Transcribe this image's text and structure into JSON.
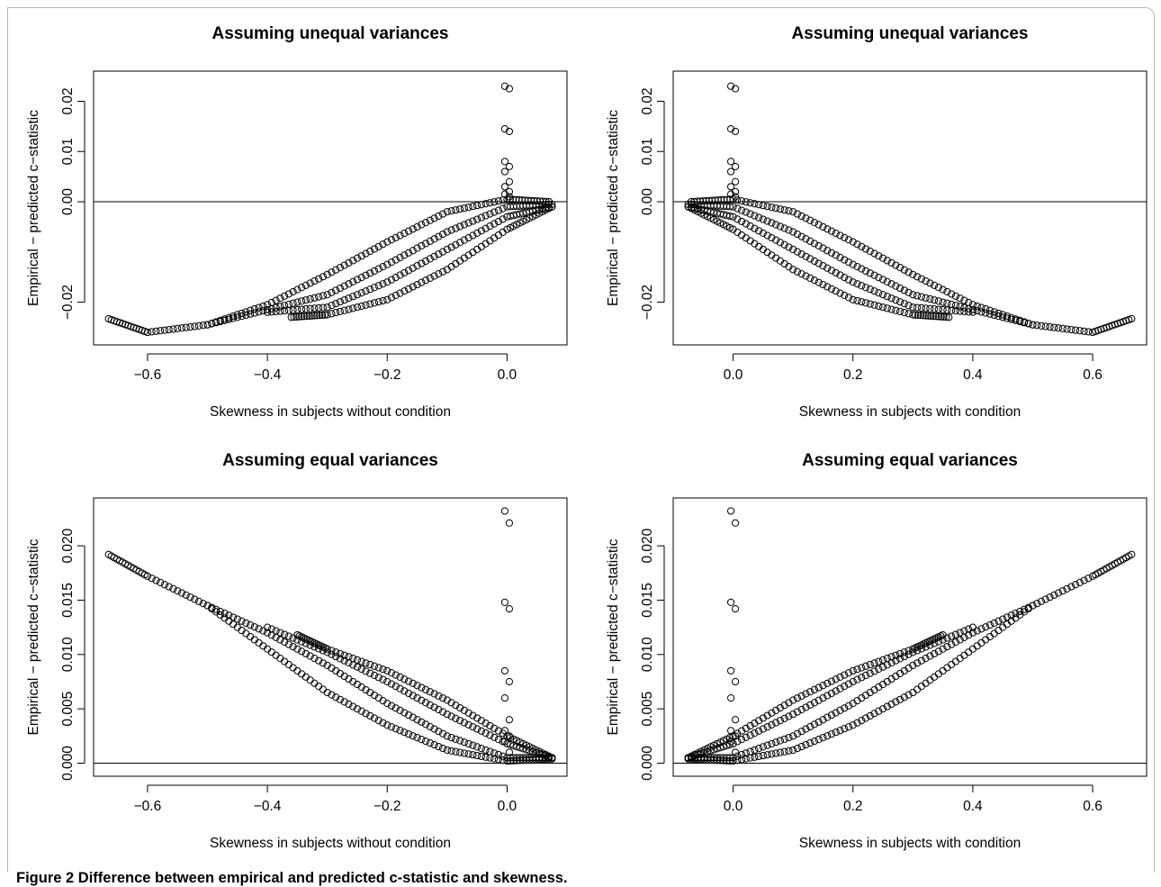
{
  "caption": {
    "figure_label": "Figure 2",
    "text": "Difference between empirical and predicted c-statistic and skewness."
  },
  "chart_data": [
    {
      "type": "scatter",
      "title": "Assuming unequal variances",
      "xlabel": "Skewness in subjects without condition",
      "ylabel": "Empirical − predicted c−statistic",
      "xlim": [
        -0.69,
        0.1
      ],
      "ylim": [
        -0.0285,
        0.026
      ],
      "xticks": [
        -0.6,
        -0.4,
        -0.2,
        0.0
      ],
      "xtick_labels": [
        "−0.6",
        "−0.4",
        "−0.2",
        "0.0"
      ],
      "yticks": [
        -0.02,
        0.0,
        0.01,
        0.02
      ],
      "ytick_labels": [
        "−0.02",
        "0.00",
        "0.01",
        "0.02"
      ],
      "hline": 0,
      "grid": false,
      "spike": {
        "x": 0.0,
        "values": [
          0.023,
          0.0225,
          0.0145,
          0.014,
          0.008,
          0.007,
          0.006,
          0.004,
          0.003,
          0.002,
          0.0015,
          0.001
        ]
      },
      "series": [
        {
          "points": [
            [
              -0.665,
              -0.0233
            ],
            [
              -0.6,
              -0.026
            ],
            [
              -0.5,
              -0.0245
            ],
            [
              -0.4,
              -0.0205
            ],
            [
              -0.3,
              -0.0145
            ],
            [
              -0.2,
              -0.008
            ],
            [
              -0.1,
              -0.002
            ],
            [
              0.0,
              0.0005
            ],
            [
              0.07,
              0.0
            ]
          ]
        },
        {
          "points": [
            [
              -0.5,
              -0.0245
            ],
            [
              -0.4,
              -0.0215
            ],
            [
              -0.3,
              -0.0185
            ],
            [
              -0.2,
              -0.0125
            ],
            [
              -0.1,
              -0.006
            ],
            [
              0.0,
              -0.001
            ],
            [
              0.075,
              -0.0005
            ]
          ]
        },
        {
          "points": [
            [
              -0.4,
              -0.022
            ],
            [
              -0.3,
              -0.021
            ],
            [
              -0.2,
              -0.016
            ],
            [
              -0.1,
              -0.0095
            ],
            [
              0.0,
              -0.003
            ],
            [
              0.075,
              -0.001
            ]
          ]
        },
        {
          "points": [
            [
              -0.36,
              -0.023
            ],
            [
              -0.3,
              -0.0225
            ],
            [
              -0.2,
              -0.0195
            ],
            [
              -0.1,
              -0.0135
            ],
            [
              0.0,
              -0.0055
            ],
            [
              0.075,
              -0.001
            ]
          ]
        }
      ]
    },
    {
      "type": "scatter",
      "title": "Assuming unequal variances",
      "xlabel": "Skewness in subjects with condition",
      "ylabel": "Empirical − predicted c−statistic",
      "xlim": [
        -0.1,
        0.69
      ],
      "ylim": [
        -0.0285,
        0.026
      ],
      "xticks": [
        0.0,
        0.2,
        0.4,
        0.6
      ],
      "xtick_labels": [
        "0.0",
        "0.2",
        "0.4",
        "0.6"
      ],
      "yticks": [
        -0.02,
        0.0,
        0.01,
        0.02
      ],
      "ytick_labels": [
        "−0.02",
        "0.00",
        "0.01",
        "0.02"
      ],
      "hline": 0,
      "grid": false,
      "spike": {
        "x": 0.0,
        "values": [
          0.023,
          0.0225,
          0.0145,
          0.014,
          0.008,
          0.007,
          0.006,
          0.004,
          0.003,
          0.002,
          0.0015,
          0.001
        ]
      },
      "series": [
        {
          "points": [
            [
              -0.07,
              0.0
            ],
            [
              0.0,
              0.0005
            ],
            [
              0.1,
              -0.002
            ],
            [
              0.2,
              -0.008
            ],
            [
              0.3,
              -0.0145
            ],
            [
              0.4,
              -0.0205
            ],
            [
              0.5,
              -0.0245
            ],
            [
              0.6,
              -0.026
            ],
            [
              0.665,
              -0.0233
            ]
          ]
        },
        {
          "points": [
            [
              -0.075,
              -0.0005
            ],
            [
              0.0,
              -0.001
            ],
            [
              0.1,
              -0.006
            ],
            [
              0.2,
              -0.0125
            ],
            [
              0.3,
              -0.0185
            ],
            [
              0.4,
              -0.0215
            ],
            [
              0.5,
              -0.0245
            ]
          ]
        },
        {
          "points": [
            [
              -0.075,
              -0.001
            ],
            [
              0.0,
              -0.003
            ],
            [
              0.1,
              -0.0095
            ],
            [
              0.2,
              -0.016
            ],
            [
              0.3,
              -0.021
            ],
            [
              0.4,
              -0.022
            ]
          ]
        },
        {
          "points": [
            [
              -0.075,
              -0.001
            ],
            [
              0.0,
              -0.0055
            ],
            [
              0.1,
              -0.0135
            ],
            [
              0.2,
              -0.0195
            ],
            [
              0.3,
              -0.0225
            ],
            [
              0.36,
              -0.023
            ]
          ]
        }
      ]
    },
    {
      "type": "scatter",
      "title": "Assuming equal variances",
      "xlabel": "Skewness in subjects without condition",
      "ylabel": "Empirical − predicted c−statistic",
      "xlim": [
        -0.69,
        0.1
      ],
      "ylim": [
        -0.0012,
        0.0244
      ],
      "xticks": [
        -0.6,
        -0.4,
        -0.2,
        0.0
      ],
      "xtick_labels": [
        "−0.6",
        "−0.4",
        "−0.2",
        "0.0"
      ],
      "yticks": [
        0.0,
        0.005,
        0.01,
        0.015,
        0.02
      ],
      "ytick_labels": [
        "0.000",
        "0.005",
        "0.010",
        "0.015",
        "0.020"
      ],
      "hline": 0,
      "grid": false,
      "spike": {
        "x": 0.0,
        "values": [
          0.0232,
          0.0221,
          0.0148,
          0.0142,
          0.0085,
          0.0075,
          0.006,
          0.004,
          0.003,
          0.0025,
          0.002,
          0.001
        ]
      },
      "series": [
        {
          "points": [
            [
              -0.665,
              0.0192
            ],
            [
              -0.6,
              0.0172
            ],
            [
              -0.5,
              0.0145
            ],
            [
              -0.4,
              0.0105
            ],
            [
              -0.3,
              0.0065
            ],
            [
              -0.2,
              0.0035
            ],
            [
              -0.1,
              0.0012
            ],
            [
              0.0,
              0.0002
            ],
            [
              0.075,
              0.0004
            ]
          ]
        },
        {
          "points": [
            [
              -0.5,
              0.0145
            ],
            [
              -0.4,
              0.012
            ],
            [
              -0.3,
              0.009
            ],
            [
              -0.2,
              0.0055
            ],
            [
              -0.1,
              0.0025
            ],
            [
              0.0,
              0.0005
            ],
            [
              0.075,
              0.0005
            ]
          ]
        },
        {
          "points": [
            [
              -0.4,
              0.0125
            ],
            [
              -0.3,
              0.0102
            ],
            [
              -0.2,
              0.0075
            ],
            [
              -0.1,
              0.0045
            ],
            [
              0.0,
              0.0018
            ],
            [
              0.075,
              0.0005
            ]
          ]
        },
        {
          "points": [
            [
              -0.35,
              0.0118
            ],
            [
              -0.3,
              0.0105
            ],
            [
              -0.2,
              0.0085
            ],
            [
              -0.1,
              0.0058
            ],
            [
              0.0,
              0.0025
            ],
            [
              0.075,
              0.0005
            ]
          ]
        }
      ]
    },
    {
      "type": "scatter",
      "title": "Assuming equal variances",
      "xlabel": "Skewness in subjects with condition",
      "ylabel": "Empirical − predicted c−statistic",
      "xlim": [
        -0.1,
        0.69
      ],
      "ylim": [
        -0.0012,
        0.0244
      ],
      "xticks": [
        0.0,
        0.2,
        0.4,
        0.6
      ],
      "xtick_labels": [
        "0.0",
        "0.2",
        "0.4",
        "0.6"
      ],
      "yticks": [
        0.0,
        0.005,
        0.01,
        0.015,
        0.02
      ],
      "ytick_labels": [
        "0.000",
        "0.005",
        "0.010",
        "0.015",
        "0.020"
      ],
      "hline": 0,
      "grid": false,
      "spike": {
        "x": 0.0,
        "values": [
          0.0232,
          0.0221,
          0.0148,
          0.0142,
          0.0085,
          0.0075,
          0.006,
          0.004,
          0.003,
          0.0025,
          0.002,
          0.001
        ]
      },
      "series": [
        {
          "points": [
            [
              -0.075,
              0.0004
            ],
            [
              0.0,
              0.0002
            ],
            [
              0.1,
              0.0012
            ],
            [
              0.2,
              0.0035
            ],
            [
              0.3,
              0.0065
            ],
            [
              0.4,
              0.0105
            ],
            [
              0.5,
              0.0145
            ],
            [
              0.6,
              0.0172
            ],
            [
              0.665,
              0.0192
            ]
          ]
        },
        {
          "points": [
            [
              -0.075,
              0.0005
            ],
            [
              0.0,
              0.0005
            ],
            [
              0.1,
              0.0025
            ],
            [
              0.2,
              0.0055
            ],
            [
              0.3,
              0.009
            ],
            [
              0.4,
              0.012
            ],
            [
              0.5,
              0.0145
            ]
          ]
        },
        {
          "points": [
            [
              -0.075,
              0.0005
            ],
            [
              0.0,
              0.0018
            ],
            [
              0.1,
              0.0045
            ],
            [
              0.2,
              0.0075
            ],
            [
              0.3,
              0.0102
            ],
            [
              0.4,
              0.0125
            ]
          ]
        },
        {
          "points": [
            [
              -0.075,
              0.0005
            ],
            [
              0.0,
              0.0025
            ],
            [
              0.1,
              0.0058
            ],
            [
              0.2,
              0.0085
            ],
            [
              0.3,
              0.0105
            ],
            [
              0.35,
              0.0118
            ]
          ]
        }
      ]
    }
  ]
}
